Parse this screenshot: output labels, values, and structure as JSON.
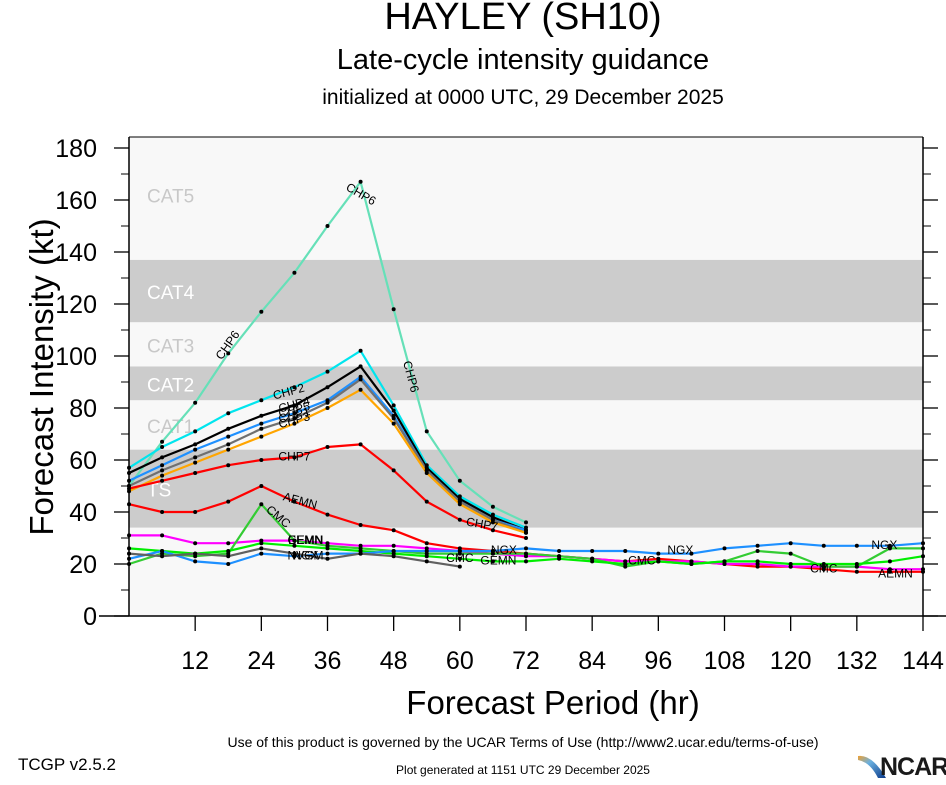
{
  "chart_data": {
    "type": "line",
    "title": "HAYLEY (SH10)",
    "subtitle": "Late-cycle intensity guidance",
    "subtitle2": "initialized at 0000 UTC, 29 December 2025",
    "xlabel": "Forecast Period (hr)",
    "ylabel": "Forecast Intensity (kt)",
    "xlim": [
      0,
      144
    ],
    "ylim": [
      0,
      180
    ],
    "xticks": [
      12,
      24,
      36,
      48,
      60,
      72,
      84,
      96,
      108,
      120,
      132,
      144
    ],
    "yticks": [
      0,
      20,
      40,
      60,
      80,
      100,
      120,
      140,
      160,
      180
    ],
    "grid": false,
    "bands": [
      {
        "label": "TS",
        "min": 34,
        "max": 64,
        "shade": "dark"
      },
      {
        "label": "CAT1",
        "min": 64,
        "max": 83,
        "shade": "light"
      },
      {
        "label": "CAT2",
        "min": 83,
        "max": 96,
        "shade": "dark"
      },
      {
        "label": "CAT3",
        "min": 96,
        "max": 113,
        "shade": "light"
      },
      {
        "label": "CAT4",
        "min": 113,
        "max": 137,
        "shade": "dark"
      },
      {
        "label": "CAT5",
        "min": 137,
        "max": 180,
        "shade": "light"
      }
    ],
    "series": [
      {
        "name": "CHP6",
        "color": "#66e0b8",
        "x": [
          0,
          6,
          12,
          18,
          24,
          30,
          36,
          42,
          48,
          54,
          60,
          66,
          72
        ],
        "values": [
          50,
          67,
          82,
          101,
          117,
          132,
          150,
          167,
          118,
          71,
          52,
          42,
          36
        ],
        "labels": [
          {
            "x": 18,
            "y": 104,
            "rot": -55
          },
          {
            "x": 42,
            "y": 162,
            "rot": 30
          },
          {
            "x": 51,
            "y": 92,
            "rot": 75
          }
        ]
      },
      {
        "name": "CHP2",
        "color": "#00e5ee",
        "x": [
          0,
          6,
          12,
          18,
          24,
          30,
          36,
          42,
          48,
          54,
          60,
          66,
          72
        ],
        "values": [
          57,
          65,
          71,
          78,
          83,
          88,
          94,
          102,
          81,
          58,
          46,
          39,
          34
        ],
        "labels": [
          {
            "x": 29,
            "y": 86,
            "rot": -15
          }
        ]
      },
      {
        "name": "CHP4",
        "color": "#000000",
        "x": [
          0,
          6,
          12,
          18,
          24,
          30,
          36,
          42,
          48,
          54,
          60,
          66,
          72
        ],
        "values": [
          55,
          61,
          66,
          72,
          77,
          81,
          88,
          96,
          79,
          57,
          45,
          38,
          33
        ],
        "labels": [
          {
            "x": 30,
            "y": 81,
            "rot": -15
          }
        ]
      },
      {
        "name": "CHP5",
        "color": "#1e90ff",
        "x": [
          0,
          6,
          12,
          18,
          24,
          30,
          36,
          42,
          48,
          54,
          60,
          66,
          72
        ],
        "values": [
          52,
          58,
          64,
          69,
          74,
          78,
          83,
          92,
          77,
          56,
          44,
          37,
          33
        ],
        "labels": [
          {
            "x": 30,
            "y": 79,
            "rot": -15
          }
        ]
      },
      {
        "name": "CHP1",
        "color": "#707070",
        "x": [
          0,
          6,
          12,
          18,
          24,
          30,
          36,
          42,
          48,
          54,
          60,
          66,
          72
        ],
        "values": [
          50,
          56,
          61,
          66,
          72,
          76,
          82,
          91,
          76,
          56,
          44,
          37,
          32
        ],
        "labels": [
          {
            "x": 30,
            "y": 77,
            "rot": -15
          }
        ]
      },
      {
        "name": "CHP3",
        "color": "#ffa500",
        "x": [
          0,
          6,
          12,
          18,
          24,
          30,
          36,
          42,
          48,
          54,
          60,
          66,
          72
        ],
        "values": [
          48,
          54,
          59,
          64,
          69,
          74,
          80,
          87,
          74,
          55,
          43,
          36,
          32
        ],
        "labels": [
          {
            "x": 30,
            "y": 75,
            "rot": -15
          }
        ]
      },
      {
        "name": "CHP7",
        "color": "#ff0000",
        "x": [
          0,
          6,
          12,
          18,
          24,
          30,
          36,
          42,
          48,
          54,
          60,
          66,
          72
        ],
        "values": [
          49,
          52,
          55,
          58,
          60,
          61,
          65,
          66,
          56,
          44,
          37,
          33,
          30
        ],
        "labels": [
          {
            "x": 30,
            "y": 61,
            "rot": 0
          },
          {
            "x": 64,
            "y": 35,
            "rot": 10
          }
        ]
      },
      {
        "name": "AEMN",
        "color": "#ff0000",
        "x": [
          0,
          6,
          12,
          18,
          24,
          30,
          36,
          42,
          48,
          54,
          60,
          66,
          72,
          78,
          84,
          90,
          96,
          102,
          108,
          114,
          120,
          126,
          132,
          138,
          144
        ],
        "values": [
          43,
          40,
          40,
          44,
          50,
          44,
          39,
          35,
          33,
          28,
          26,
          25,
          24,
          23,
          22,
          21,
          22,
          21,
          20,
          19,
          19,
          18,
          17,
          17,
          17
        ],
        "labels": [
          {
            "x": 31,
            "y": 44,
            "rot": 15
          },
          {
            "x": 139,
            "y": 16,
            "rot": 0
          }
        ]
      },
      {
        "name": "EEMN",
        "color": "#ff00ff",
        "x": [
          0,
          6,
          12,
          18,
          24,
          30,
          36,
          42,
          48,
          54,
          60,
          66,
          72,
          78,
          84,
          90,
          96,
          102,
          108,
          114,
          120,
          126,
          132,
          138,
          144
        ],
        "values": [
          31,
          31,
          28,
          28,
          29,
          29,
          28,
          27,
          27,
          26,
          25,
          24,
          23,
          23,
          22,
          21,
          21,
          21,
          20,
          20,
          19,
          19,
          19,
          18,
          18
        ],
        "labels": [
          {
            "x": 32,
            "y": 29,
            "rot": 0
          }
        ]
      },
      {
        "name": "CMC",
        "color": "#33cc33",
        "x": [
          0,
          6,
          12,
          18,
          24,
          30,
          36,
          42,
          48,
          54,
          60,
          66,
          72,
          78,
          84,
          90,
          96,
          102,
          108,
          114,
          120,
          126,
          132,
          138,
          144
        ],
        "values": [
          20,
          24,
          23,
          24,
          43,
          29,
          27,
          26,
          25,
          24,
          24,
          24,
          24,
          23,
          22,
          19,
          21,
          20,
          21,
          25,
          24,
          19,
          19,
          26,
          26
        ],
        "labels": [
          {
            "x": 27,
            "y": 38,
            "rot": 40
          },
          {
            "x": 60,
            "y": 22,
            "rot": 0
          },
          {
            "x": 93,
            "y": 21,
            "rot": 0
          },
          {
            "x": 126,
            "y": 18,
            "rot": 0
          }
        ]
      },
      {
        "name": "GEMN",
        "color": "#00ee00",
        "x": [
          0,
          6,
          12,
          18,
          24,
          30,
          36,
          42,
          48,
          54,
          60,
          66,
          72,
          78,
          84,
          90,
          96,
          102,
          108,
          114,
          120,
          126,
          132,
          138,
          144
        ],
        "values": [
          26,
          25,
          24,
          25,
          28,
          27,
          26,
          25,
          24,
          23,
          22,
          21,
          21,
          22,
          21,
          20,
          21,
          20,
          21,
          21,
          20,
          20,
          20,
          21,
          23
        ],
        "labels": [
          {
            "x": 32,
            "y": 29,
            "rot": 0
          },
          {
            "x": 67,
            "y": 21,
            "rot": 0
          }
        ]
      },
      {
        "name": "NGX",
        "color": "#1e90ff",
        "x": [
          0,
          6,
          12,
          18,
          24,
          30,
          36,
          42,
          48,
          54,
          60,
          66,
          72,
          78,
          84,
          90,
          96,
          102,
          108,
          114,
          120,
          126,
          132,
          138,
          144
        ],
        "values": [
          22,
          25,
          21,
          20,
          24,
          23,
          24,
          24,
          25,
          25,
          25,
          25,
          26,
          25,
          25,
          25,
          24,
          24,
          26,
          27,
          28,
          27,
          27,
          27,
          28
        ],
        "labels": [
          {
            "x": 32,
            "y": 23,
            "rot": 0
          },
          {
            "x": 68,
            "y": 25,
            "rot": 0
          },
          {
            "x": 100,
            "y": 25,
            "rot": 0
          },
          {
            "x": 137,
            "y": 27,
            "rot": 0
          }
        ]
      },
      {
        "name": "NVGM",
        "color": "#606060",
        "x": [
          0,
          6,
          12,
          18,
          24,
          30,
          36,
          42,
          48,
          54,
          60
        ],
        "values": [
          24,
          23,
          24,
          23,
          26,
          24,
          22,
          24,
          23,
          21,
          19
        ],
        "labels": [
          {
            "x": 32,
            "y": 23,
            "rot": 0
          }
        ]
      }
    ]
  },
  "footer": {
    "terms": "Use of this product is governed by the UCAR Terms of Use (http://www2.ucar.edu/terms-of-use)",
    "plot_generated": "Plot generated at 1151 UTC   29 December 2025",
    "version": "TCGP v2.5.2",
    "logo_text": "NCAR"
  },
  "colors": {
    "band_dark": "#cccccc",
    "band_light": "#f8f8f8",
    "band_label_dark": "#ffffff",
    "band_label_light": "#c8c8c8"
  }
}
